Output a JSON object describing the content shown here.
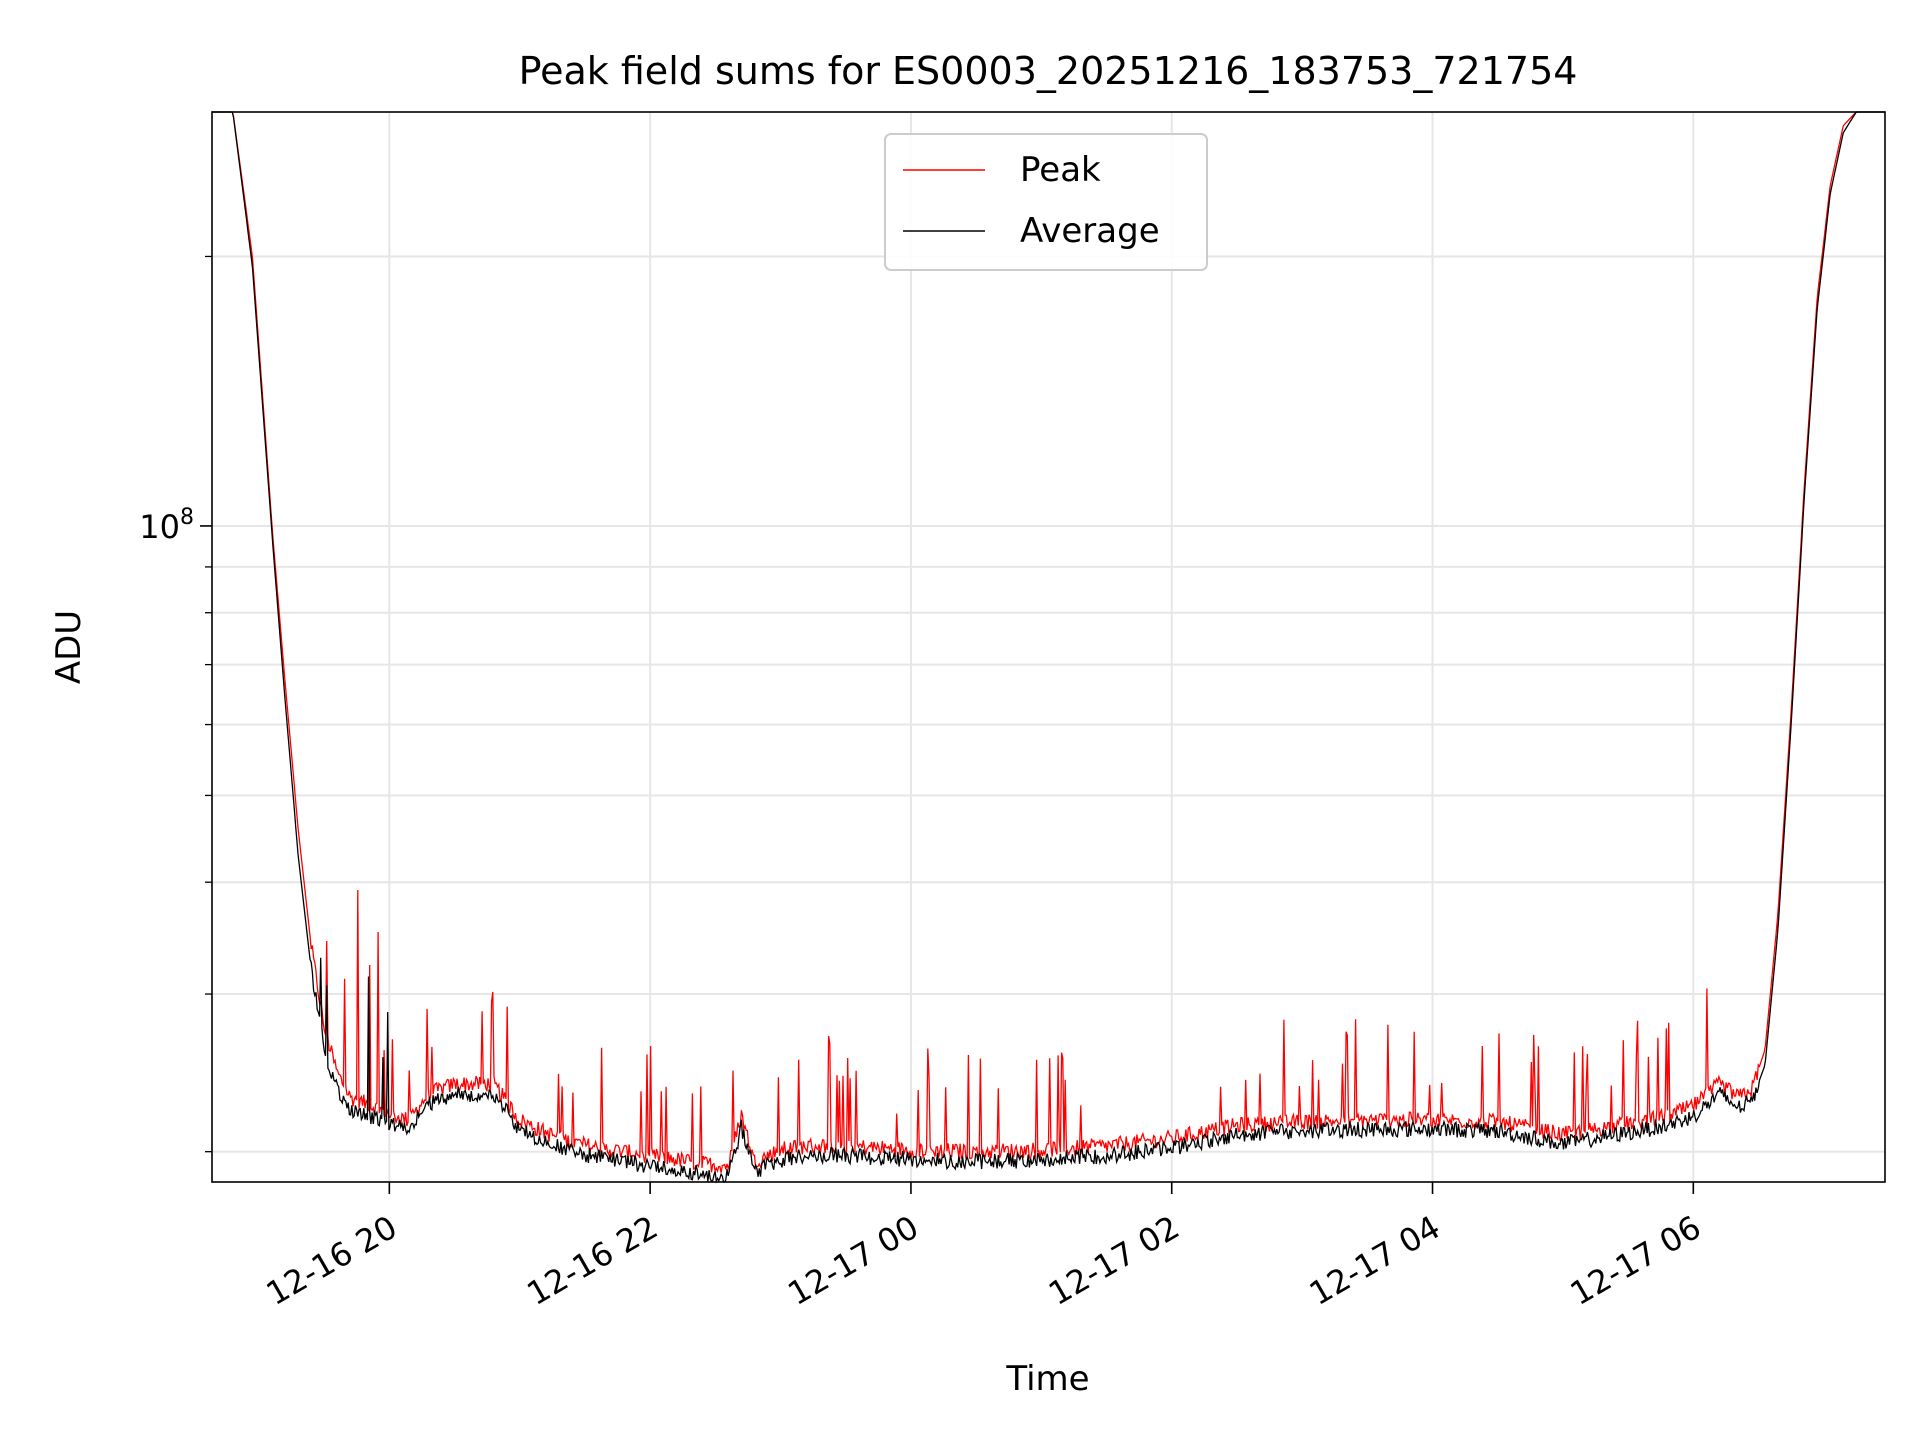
{
  "chart_data": {
    "type": "line",
    "title": "Peak field sums for ES0003_20251216_183753_721754",
    "xlabel": "Time",
    "ylabel": "ADU",
    "yscale": "log",
    "y_tick_label": {
      "base": "10",
      "exp": "8",
      "value": 100000000
    },
    "y_minor_ticks": [
      20000000,
      30000000,
      40000000,
      50000000,
      60000000,
      70000000,
      80000000,
      90000000,
      200000000
    ],
    "ylim": [
      18500000,
      290000000
    ],
    "xlim_hours": [
      -1.36,
      11.47
    ],
    "x_ticks": [
      {
        "hour": 0,
        "label": "12-16 20"
      },
      {
        "hour": 2,
        "label": "12-16 22"
      },
      {
        "hour": 4,
        "label": "12-17 00"
      },
      {
        "hour": 6,
        "label": "12-17 02"
      },
      {
        "hour": 8,
        "label": "12-17 04"
      },
      {
        "hour": 10,
        "label": "12-17 06"
      }
    ],
    "grid": true,
    "legend": {
      "position": "top-center",
      "entries": [
        "Peak",
        "Average"
      ]
    },
    "series": [
      {
        "name": "Peak",
        "color": "#ff0000",
        "x_hours": [
          -1.36,
          -1.2,
          -1.05,
          -0.9,
          -0.8,
          -0.7,
          -0.6,
          -0.5,
          -0.4,
          -0.3,
          -0.2,
          -0.1,
          0.0,
          0.15,
          0.3,
          0.5,
          0.8,
          1.0,
          1.2,
          1.4,
          1.6,
          1.8,
          2.0,
          2.2,
          2.4,
          2.6,
          2.7,
          2.8,
          2.9,
          3.0,
          3.2,
          3.5,
          4.0,
          4.5,
          5.0,
          5.5,
          6.0,
          6.5,
          7.0,
          7.5,
          8.0,
          8.5,
          9.0,
          9.5,
          9.8,
          10.0,
          10.2,
          10.35,
          10.45,
          10.55,
          10.65,
          10.75,
          10.85,
          10.95,
          11.05,
          11.15,
          11.25,
          11.35,
          11.47
        ],
        "values": [
          290000000,
          290000000,
          200000000,
          100000000,
          67000000,
          46000000,
          34000000,
          27500000,
          24500000,
          23000000,
          22700000,
          22400000,
          22000000,
          21700000,
          23200000,
          23800000,
          23800000,
          21700000,
          21000000,
          20500000,
          20200000,
          20000000,
          19800000,
          19600000,
          19400000,
          19300000,
          22000000,
          19500000,
          19800000,
          20100000,
          20300000,
          20300000,
          20100000,
          20000000,
          20100000,
          20300000,
          20700000,
          21400000,
          21600000,
          21700000,
          21700000,
          21600000,
          20900000,
          21500000,
          21900000,
          22500000,
          23800000,
          23000000,
          23500000,
          26000000,
          37000000,
          62000000,
          110000000,
          180000000,
          240000000,
          280000000,
          290000000,
          290000000,
          290000000
        ]
      },
      {
        "name": "Average",
        "color": "#000000",
        "x_hours": [
          -1.36,
          -1.2,
          -1.05,
          -0.9,
          -0.8,
          -0.7,
          -0.6,
          -0.5,
          -0.4,
          -0.3,
          -0.2,
          -0.1,
          0.0,
          0.15,
          0.3,
          0.5,
          0.8,
          1.0,
          1.2,
          1.4,
          1.6,
          1.8,
          2.0,
          2.2,
          2.4,
          2.6,
          2.7,
          2.8,
          2.9,
          3.0,
          3.2,
          3.5,
          4.0,
          4.5,
          5.0,
          5.5,
          6.0,
          6.5,
          7.0,
          7.5,
          8.0,
          8.5,
          9.0,
          9.5,
          9.8,
          10.0,
          10.2,
          10.35,
          10.45,
          10.55,
          10.65,
          10.75,
          10.85,
          10.95,
          11.05,
          11.15,
          11.25,
          11.35,
          11.47
        ],
        "values": [
          290000000,
          290000000,
          195000000,
          98000000,
          64000000,
          43000000,
          32000000,
          26000000,
          23500000,
          22300000,
          22000000,
          21800000,
          21500000,
          21200000,
          22600000,
          23200000,
          23200000,
          21200000,
          20500000,
          20000000,
          19700000,
          19500000,
          19300000,
          19100000,
          18900000,
          18800000,
          21300000,
          19000000,
          19300000,
          19600000,
          19800000,
          19800000,
          19600000,
          19500000,
          19600000,
          19800000,
          20200000,
          20900000,
          21100000,
          21200000,
          21200000,
          21100000,
          20400000,
          21000000,
          21400000,
          21900000,
          23200000,
          22400000,
          22800000,
          25000000,
          35500000,
          60000000,
          107000000,
          175000000,
          235000000,
          275000000,
          290000000,
          290000000,
          290000000
        ]
      }
    ]
  }
}
